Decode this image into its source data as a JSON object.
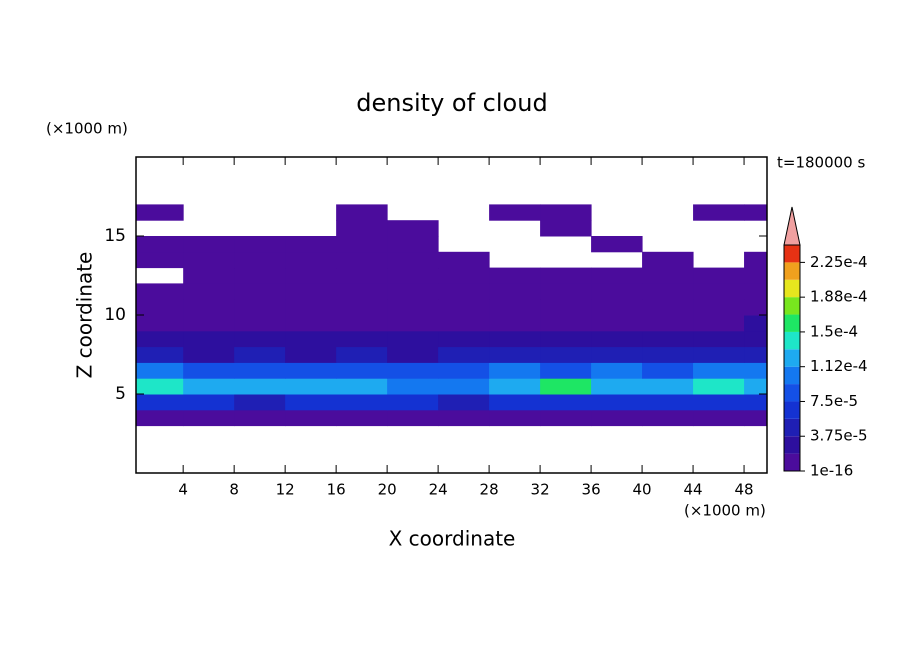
{
  "chart_data": {
    "type": "contour",
    "title": "density of cloud",
    "x_label": "X coordinate",
    "y_label": "Z coordinate",
    "x_unit": "(×1000 m)",
    "y_unit": "(×1000 m)",
    "time_label": "t=180000 s",
    "xlim": [
      0.3,
      49.8
    ],
    "ylim": [
      0,
      20
    ],
    "xticks": [
      4,
      8,
      12,
      16,
      20,
      24,
      28,
      32,
      36,
      40,
      44,
      48
    ],
    "yticks": [
      5,
      10,
      15
    ],
    "x_edges": [
      0.3,
      4,
      8,
      12,
      16,
      20,
      24,
      28,
      32,
      36,
      40,
      44,
      48,
      49.8
    ],
    "y_edges": [
      3,
      4,
      5,
      6,
      7,
      8,
      9,
      10,
      11,
      12,
      13,
      14,
      15,
      16,
      17
    ],
    "z": [
      [
        5e-06,
        5e-06,
        5e-06,
        5e-06,
        5e-06,
        5e-06,
        5e-06,
        5e-06,
        5e-06,
        5e-06,
        5e-06,
        5e-06,
        5e-06
      ],
      [
        6e-05,
        7e-05,
        5e-05,
        6e-05,
        7e-05,
        6e-05,
        5e-05,
        7e-05,
        6e-05,
        7e-05,
        6e-05,
        7e-05,
        6e-05
      ],
      [
        0.00014,
        0.00012,
        0.00013,
        0.00012,
        0.00013,
        0.00011,
        0.0001,
        0.00013,
        0.00015,
        0.00012,
        0.00013,
        0.00014,
        0.00013
      ],
      [
        0.0001,
        9e-05,
        8e-05,
        9e-05,
        8e-05,
        8e-05,
        9e-05,
        0.0001,
        9e-05,
        0.00011,
        9e-05,
        0.0001,
        0.00011
      ],
      [
        4e-05,
        3e-05,
        4e-05,
        3e-05,
        4e-05,
        3e-05,
        5e-05,
        4e-05,
        4e-05,
        5e-05,
        4e-05,
        4e-05,
        5e-05
      ],
      [
        2.5e-05,
        2e-05,
        2.5e-05,
        2e-05,
        2e-05,
        2.5e-05,
        2e-05,
        2.5e-05,
        2e-05,
        2.5e-05,
        2e-05,
        2.5e-05,
        3e-05
      ],
      [
        1.2e-05,
        8e-06,
        1.5e-05,
        1e-05,
        8e-06,
        1.2e-05,
        8e-06,
        1e-05,
        1.2e-05,
        8e-06,
        1.5e-05,
        1.2e-05,
        2e-05
      ],
      [
        5e-06,
        5e-06,
        1e-05,
        5e-06,
        5e-06,
        8e-06,
        5e-06,
        5e-06,
        8e-06,
        5e-06,
        1e-05,
        5e-06,
        1.2e-05
      ],
      [
        5e-06,
        5e-06,
        5e-06,
        5e-06,
        5e-06,
        5e-06,
        5e-06,
        5e-06,
        5e-06,
        5e-06,
        5e-06,
        5e-06,
        5e-06
      ],
      [
        null,
        5e-06,
        5e-06,
        5e-06,
        5e-06,
        5e-06,
        5e-06,
        5e-06,
        5e-06,
        5e-06,
        5e-06,
        5e-06,
        5e-06
      ],
      [
        5e-06,
        5e-06,
        5e-06,
        5e-06,
        5e-06,
        5e-06,
        5e-06,
        null,
        null,
        null,
        5e-06,
        null,
        5e-06
      ],
      [
        5e-06,
        5e-06,
        5e-06,
        5e-06,
        5e-06,
        5e-06,
        null,
        null,
        null,
        5e-06,
        null,
        null,
        null
      ],
      [
        null,
        null,
        null,
        null,
        5e-06,
        5e-06,
        null,
        null,
        5e-06,
        null,
        null,
        null,
        null
      ],
      [
        5e-06,
        null,
        null,
        null,
        5e-06,
        null,
        null,
        5e-06,
        5e-06,
        null,
        null,
        5e-06,
        5e-06
      ]
    ],
    "levels": [
      1e-16,
      1.875e-05,
      3.75e-05,
      5.625e-05,
      7.5e-05,
      9.375e-05,
      0.0001125,
      0.00013125,
      0.00015,
      0.00016875,
      0.0001875,
      0.00020625,
      0.000225,
      0.00024375
    ],
    "colors": [
      "#4b0c9c",
      "#2d0f9e",
      "#1f1fb4",
      "#1432d2",
      "#1450e6",
      "#1478f0",
      "#1eaaf0",
      "#1ee6c8",
      "#1ee664",
      "#78e61e",
      "#e6e61e",
      "#f0a01e",
      "#e63214"
    ],
    "extend_color": "#f0a0a0",
    "colorbar_ticks": [
      {
        "value": 1e-16,
        "label": "1e-16"
      },
      {
        "value": 3.75e-05,
        "label": "3.75e-5"
      },
      {
        "value": 7.5e-05,
        "label": "7.5e-5"
      },
      {
        "value": 0.0001125,
        "label": "1.12e-4"
      },
      {
        "value": 0.00015,
        "label": "1.5e-4"
      },
      {
        "value": 0.0001875,
        "label": "1.88e-4"
      },
      {
        "value": 0.000225,
        "label": "2.25e-4"
      }
    ]
  }
}
